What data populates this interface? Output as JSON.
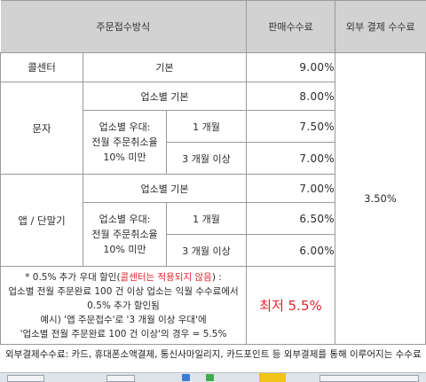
{
  "header": {
    "method": "주문접수방식",
    "sales_fee": "판매수수료",
    "external_fee": "외부 결제 수수료"
  },
  "call_center": {
    "label": "콜센터",
    "type": "기본",
    "fee": "9.00%"
  },
  "sms": {
    "label": "문자",
    "basic_label": "업소별 기본",
    "basic_fee": "8.00%",
    "pref_label": "업소별 우대:\n전월 주문취소율\n10% 미만",
    "tier1_label": "1 개월",
    "tier1_fee": "7.50%",
    "tier2_label": "3 개월 이상",
    "tier2_fee": "7.00%"
  },
  "app": {
    "label": "앱 / 단말기",
    "basic_label": "업소별 기본",
    "basic_fee": "7.00%",
    "pref_label": "업소별 우대:\n전월 주문취소율\n10% 미만",
    "tier1_label": "1 개월",
    "tier1_fee": "6.50%",
    "tier2_label": "3 개월 이상",
    "tier2_fee": "6.00%"
  },
  "external_fee_value": "3.50%",
  "note": {
    "part1": "* 0.5% 추가 우대 할인(",
    "part1_red": "콜센터는 적용되지 않음",
    "part1_end": ") :",
    "line2": "업소별 전월 주문완료 100 건 이상 업소는 익월 수수료에서",
    "line3": "0.5% 추가 할인됨",
    "line4": "예시) '앱 주문접수'로 '3 개월 이상 우대'에",
    "line5": "'업소별 전월 주문완료 100 건 이상'의 경우 = 5.5%"
  },
  "lowest": "최저 5.5%",
  "footer": "외부결제수수료: 카드, 휴대폰소액결제, 통신사마일리지, 카드포인트 등 외부결제를 통해 이루어지는 수수료",
  "colors": {
    "header_bg": "#d2d2d2",
    "accent_red": "#e0262f",
    "border": "#9a9a9a"
  }
}
